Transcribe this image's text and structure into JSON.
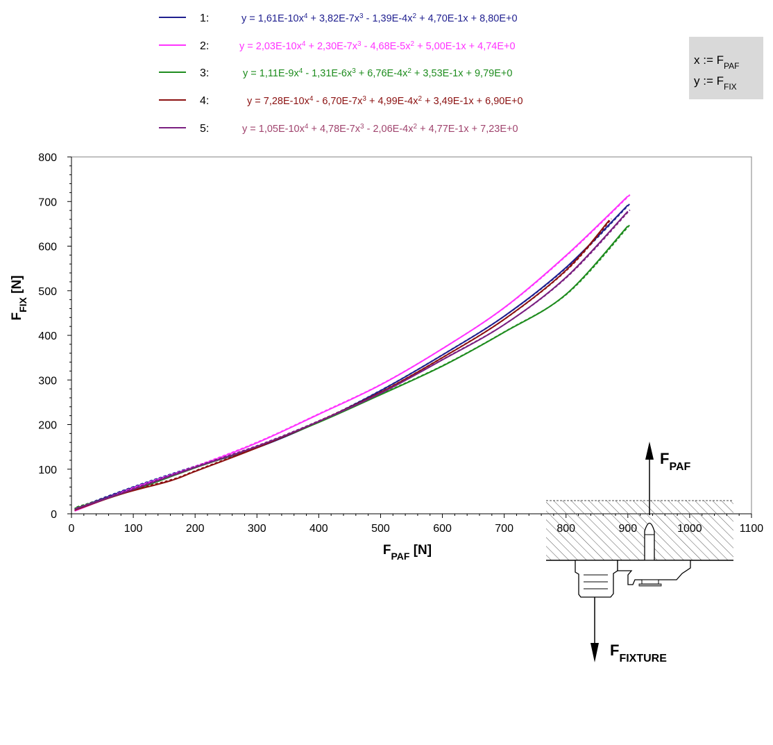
{
  "legend": [
    {
      "num": "1:",
      "color": "#1f1f8f",
      "eq": [
        [
          "y = 1,61E-10x",
          ""
        ],
        [
          "4",
          "sup"
        ],
        [
          " + 3,82E-7x",
          ""
        ],
        [
          "3",
          "sup"
        ],
        [
          " - 1,39E-4x",
          ""
        ],
        [
          "2",
          "sup"
        ],
        [
          " + 4,70E-1x + 8,80E+0",
          ""
        ]
      ]
    },
    {
      "num": "2:",
      "color": "#ff33ff",
      "eq": [
        [
          "y = 2,03E-10x",
          ""
        ],
        [
          "4",
          "sup"
        ],
        [
          " + 2,30E-7x",
          ""
        ],
        [
          "3",
          "sup"
        ],
        [
          " - 4,68E-5x",
          ""
        ],
        [
          "2",
          "sup"
        ],
        [
          " + 5,00E-1x + 4,74E+0",
          ""
        ]
      ]
    },
    {
      "num": "3:",
      "color": "#1e8c1e",
      "eq": [
        [
          "y = 1,11E-9x",
          ""
        ],
        [
          "4",
          "sup"
        ],
        [
          " - 1,31E-6x",
          ""
        ],
        [
          "3",
          "sup"
        ],
        [
          " + 6,76E-4x",
          ""
        ],
        [
          "2",
          "sup"
        ],
        [
          " + 3,53E-1x + 9,79E+0",
          ""
        ]
      ]
    },
    {
      "num": "4:",
      "color": "#8b1010",
      "eq": [
        [
          "y = 7,28E-10x",
          ""
        ],
        [
          "4",
          "sup"
        ],
        [
          " - 6,70E-7x",
          ""
        ],
        [
          "3",
          "sup"
        ],
        [
          " + 4,99E-4x",
          ""
        ],
        [
          "2",
          "sup"
        ],
        [
          " + 3,49E-1x + 6,90E+0",
          ""
        ]
      ]
    },
    {
      "num": "5:",
      "color": "#7a1f80",
      "eqColor": "#a0446e",
      "eq": [
        [
          "y = 1,05E-10x",
          ""
        ],
        [
          "4",
          "sup"
        ],
        [
          " + 4,78E-7x",
          ""
        ],
        [
          "3",
          "sup"
        ],
        [
          " - 2,06E-4x",
          ""
        ],
        [
          "2",
          "sup"
        ],
        [
          " + 4,77E-1x + 7,23E+0",
          ""
        ]
      ]
    }
  ],
  "definitions": {
    "x_line": [
      [
        "x := F",
        ""
      ],
      [
        "PAF",
        "sub"
      ]
    ],
    "y_line": [
      [
        "y := F",
        ""
      ],
      [
        "FIX",
        "sub"
      ]
    ]
  },
  "axes": {
    "x_label": [
      [
        "F",
        ""
      ],
      [
        "PAF",
        "sub"
      ],
      [
        " [N]",
        ""
      ]
    ],
    "y_label": [
      [
        "F",
        ""
      ],
      [
        "FIX",
        "sub"
      ],
      [
        "  [N]",
        ""
      ]
    ]
  },
  "inset": {
    "top_label": [
      [
        "F",
        ""
      ],
      [
        "PAF",
        "sub"
      ]
    ],
    "bottom_label": [
      [
        "F",
        ""
      ],
      [
        "FIXTURE",
        "sub"
      ]
    ]
  },
  "chart_data": {
    "type": "line",
    "xlim": [
      0,
      1100
    ],
    "ylim": [
      0,
      800
    ],
    "x_ticks": [
      0,
      100,
      200,
      300,
      400,
      500,
      600,
      700,
      800,
      900,
      1000,
      1100
    ],
    "y_ticks": [
      0,
      100,
      200,
      300,
      400,
      500,
      600,
      700,
      800
    ],
    "grid": false,
    "legend_position": "top",
    "series": [
      {
        "name": "1",
        "color": "#1f1f8f",
        "x": [
          5,
          100,
          200,
          300,
          400,
          500,
          600,
          700,
          800,
          900
        ],
        "y": [
          10,
          59,
          105,
          148,
          206,
          276,
          356,
          443,
          552,
          692
        ]
      },
      {
        "name": "2",
        "color": "#ff33ff",
        "x": [
          5,
          100,
          200,
          300,
          400,
          500,
          600,
          700,
          800,
          900
        ],
        "y": [
          6,
          57,
          105,
          159,
          223,
          289,
          370,
          462,
          579,
          712
        ]
      },
      {
        "name": "3",
        "color": "#1e8c1e",
        "x": [
          5,
          100,
          200,
          300,
          400,
          500,
          600,
          700,
          800,
          900
        ],
        "y": [
          12,
          53,
          103,
          150,
          205,
          267,
          331,
          407,
          492,
          645
        ]
      },
      {
        "name": "4",
        "color": "#8b1010",
        "x": [
          5,
          80,
          160,
          200,
          300,
          400,
          500,
          600,
          700,
          800,
          870
        ],
        "y": [
          8,
          44,
          74,
          95,
          148,
          207,
          272,
          350,
          436,
          546,
          658
        ]
      },
      {
        "name": "5",
        "color": "#7a1f80",
        "x": [
          5,
          100,
          200,
          300,
          400,
          500,
          600,
          700,
          800,
          900
        ],
        "y": [
          10,
          55,
          104,
          151,
          207,
          270,
          345,
          424,
          530,
          678
        ]
      }
    ]
  }
}
